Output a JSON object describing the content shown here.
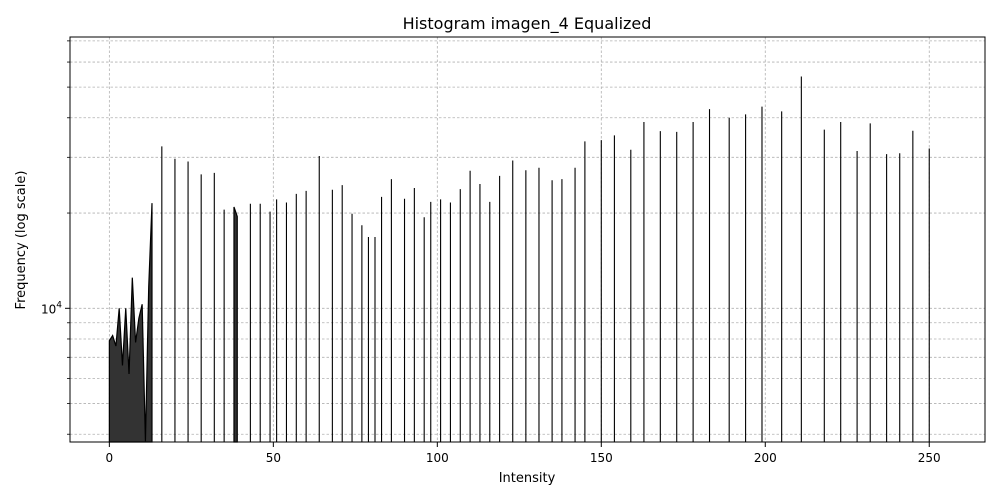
{
  "chart_data": {
    "type": "area",
    "title": "Histogram imagen_4 Equalized",
    "xlabel": "Intensity",
    "ylabel": "Frequency (log scale)",
    "xlim": [
      -12,
      267
    ],
    "ylim": [
      3780,
      72000
    ],
    "yscale": "log",
    "grid": true,
    "x_ticks": [
      0,
      50,
      100,
      150,
      200,
      250
    ],
    "x_tick_labels": [
      "0",
      "50",
      "100",
      "150",
      "200",
      "250"
    ],
    "y_ticks": [
      10000
    ],
    "y_tick_base": "10",
    "y_tick_exponent": "4",
    "y_minor_ticks": [
      4000,
      5000,
      6000,
      7000,
      8000,
      9000,
      20000,
      30000,
      40000,
      50000,
      60000,
      70000
    ],
    "fill_color": "#333333",
    "line_color": "#000000",
    "series": [
      {
        "x": [
          0,
          1,
          2,
          3,
          4,
          5,
          6,
          7,
          8,
          9,
          10,
          11,
          12,
          13,
          16,
          20,
          24,
          28,
          32,
          35,
          38,
          39,
          43,
          46,
          49,
          51,
          54,
          57,
          60,
          64,
          68,
          71,
          74,
          77,
          79,
          81,
          83,
          86,
          90,
          93,
          96,
          98,
          101,
          104,
          107,
          110,
          113,
          116,
          119,
          123,
          127,
          131,
          135,
          138,
          142,
          145,
          150,
          154,
          159,
          163,
          168,
          173,
          178,
          183,
          189,
          194,
          199,
          205,
          211,
          218,
          223,
          228,
          232,
          237,
          241,
          245,
          250
        ],
        "values": [
          7900,
          8200,
          7600,
          10000,
          6600,
          10000,
          6200,
          12500,
          7800,
          9300,
          10300,
          3800,
          11700,
          21500,
          32500,
          29700,
          29100,
          26500,
          26800,
          20500,
          20900,
          19500,
          21400,
          21400,
          20200,
          22100,
          21600,
          23000,
          23500,
          30300,
          23700,
          24500,
          19900,
          18300,
          16800,
          16800,
          22500,
          25600,
          22200,
          24000,
          19400,
          21700,
          22100,
          21600,
          23800,
          27200,
          24700,
          21700,
          26200,
          29300,
          27300,
          27800,
          25400,
          25600,
          27800,
          33700,
          34000,
          35200,
          31700,
          38800,
          36300,
          36100,
          38800,
          42600,
          40000,
          41000,
          43400,
          41900,
          54000,
          36700,
          38800,
          31400,
          38400,
          30700,
          30900,
          36400,
          32000
        ]
      }
    ]
  }
}
